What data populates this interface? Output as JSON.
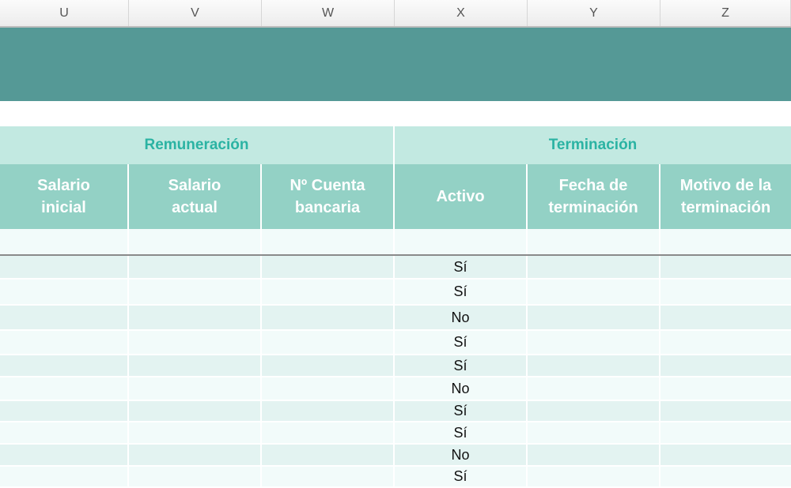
{
  "column_headers": [
    "U",
    "V",
    "W",
    "X",
    "Y",
    "Z"
  ],
  "groups": [
    {
      "label": "Remuneración"
    },
    {
      "label": "Terminación"
    }
  ],
  "subheaders": [
    "Salario\ninicial",
    "Salario\nactual",
    "Nº Cuenta\nbancaria",
    "Activo",
    "Fecha de\nterminación",
    "Motivo de la\nterminación"
  ],
  "activo_values": [
    "Sí",
    "Sí",
    "No",
    "Sí",
    "Sí",
    "No",
    "Sí",
    "Sí",
    "No",
    "Sí"
  ],
  "colors": {
    "band": "#559996",
    "group_bg": "#c2e9e1",
    "group_text": "#2bb3a3",
    "subheader_bg": "#93d1c5",
    "row_dark": "#e3f3f1",
    "row_light": "#f2fbfa"
  }
}
